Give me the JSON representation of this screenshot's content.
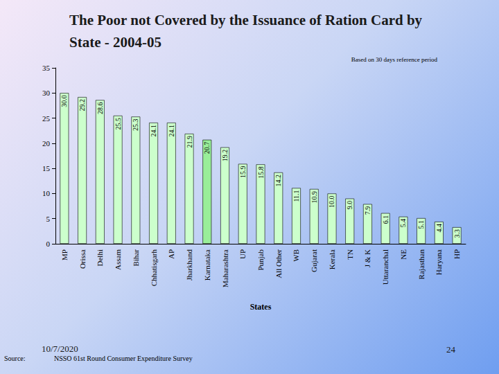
{
  "chart_data": {
    "type": "bar",
    "title": "The Poor not Covered by the Issuance of Ration Card by State - 2004-05",
    "subtitle": "Based on 30 days reference period",
    "x_label": "States",
    "categories": [
      "MP",
      "Orissa",
      "Delhi",
      "Assam",
      "Bihar",
      "Chhatisgarh",
      "AP",
      "Jharkhand",
      "Karnataka",
      "Maharashtra",
      "UP",
      "Punjab",
      "All Other",
      "WB",
      "Gujarat",
      "Kerala",
      "TN",
      "J & K",
      "Uttaranchal",
      "NE",
      "Rajasthan",
      "Haryana",
      "HP"
    ],
    "values": [
      30.0,
      29.2,
      28.6,
      25.5,
      25.3,
      24.1,
      24.1,
      21.9,
      20.7,
      19.2,
      15.9,
      15.8,
      14.2,
      11.1,
      10.9,
      10.0,
      9.0,
      7.9,
      6.1,
      5.4,
      5.1,
      4.4,
      3.3
    ],
    "value_labels": [
      "30.0",
      "29.2",
      "28.6",
      "25.5",
      "25.3",
      "24.1",
      "24.1",
      "21.9",
      "20.7",
      "19.2",
      "15.9",
      "15.8",
      "14.2",
      "11.1",
      "10.9",
      "10.0",
      "9.0",
      "7.9",
      "6.1",
      "5.4",
      "5.1",
      "4.4",
      "3.3"
    ],
    "colors": [
      "#ccffcc",
      "#ccffcc",
      "#ccffcc",
      "#ccffcc",
      "#ccffcc",
      "#ccffcc",
      "#ccffcc",
      "#ccffcc",
      "#99ee99",
      "#ccffcc",
      "#ccffcc",
      "#ccffcc",
      "#ccffcc",
      "#ccffcc",
      "#ccffcc",
      "#ccffcc",
      "#ccffcc",
      "#ccffcc",
      "#ccffcc",
      "#ccffcc",
      "#ccffcc",
      "#ccffcc",
      "#ccffcc"
    ],
    "ylim": [
      0,
      35
    ],
    "yticks": [
      0,
      5,
      10,
      15,
      20,
      25,
      30,
      35
    ],
    "grid": false,
    "data_labels": true,
    "footer": {
      "source_label": "Source:",
      "date": "10/7/2020",
      "source": "NSSO 61st Round Consumer Expenditure Survey",
      "page": "24"
    }
  }
}
